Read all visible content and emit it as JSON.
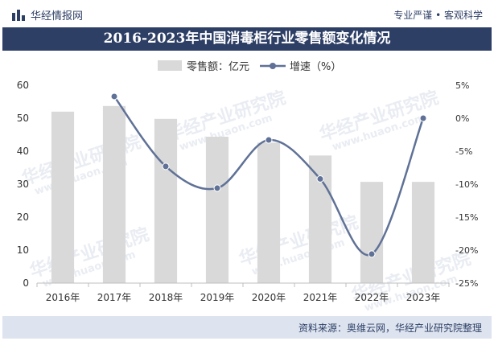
{
  "header": {
    "brand": "华经情报网",
    "slogan": "专业严谨 • 客观科学"
  },
  "watermark": {
    "text": "华经产业研究院",
    "url": "www.huaon.com"
  },
  "footer": {
    "source": "资料来源：奥维云网，华经产业研究院整理"
  },
  "colors": {
    "bar": "#d9d9d9",
    "line": "#5f7196",
    "title_bg": "#2e3f66",
    "footer_bg": "#dde4ef"
  },
  "chart_data": {
    "type": "bar",
    "title": "2016-2023年中国消毒柜行业零售额变化情况",
    "categories": [
      "2016年",
      "2017年",
      "2018年",
      "2019年",
      "2020年",
      "2021年",
      "2022年",
      "2023年"
    ],
    "series": [
      {
        "name": "零售额：亿元",
        "type": "bar",
        "axis": "left",
        "values": [
          52.0,
          53.7,
          49.8,
          44.4,
          42.6,
          38.7,
          30.7,
          30.7
        ]
      },
      {
        "name": "增速（%）",
        "type": "line",
        "smooth": true,
        "axis": "right",
        "values": [
          null,
          3.3,
          -7.3,
          -10.6,
          -3.3,
          -9.2,
          -20.6,
          0.0
        ]
      }
    ],
    "y_left": {
      "min": 0,
      "max": 60,
      "ticks": [
        "0",
        "10",
        "20",
        "30",
        "40",
        "50",
        "60"
      ]
    },
    "y_right": {
      "min": -25,
      "max": 5,
      "ticks": [
        "-25%",
        "-20%",
        "-15%",
        "-10%",
        "-5%",
        "0%",
        "5%"
      ]
    },
    "legend": "top-center",
    "grid": false
  }
}
